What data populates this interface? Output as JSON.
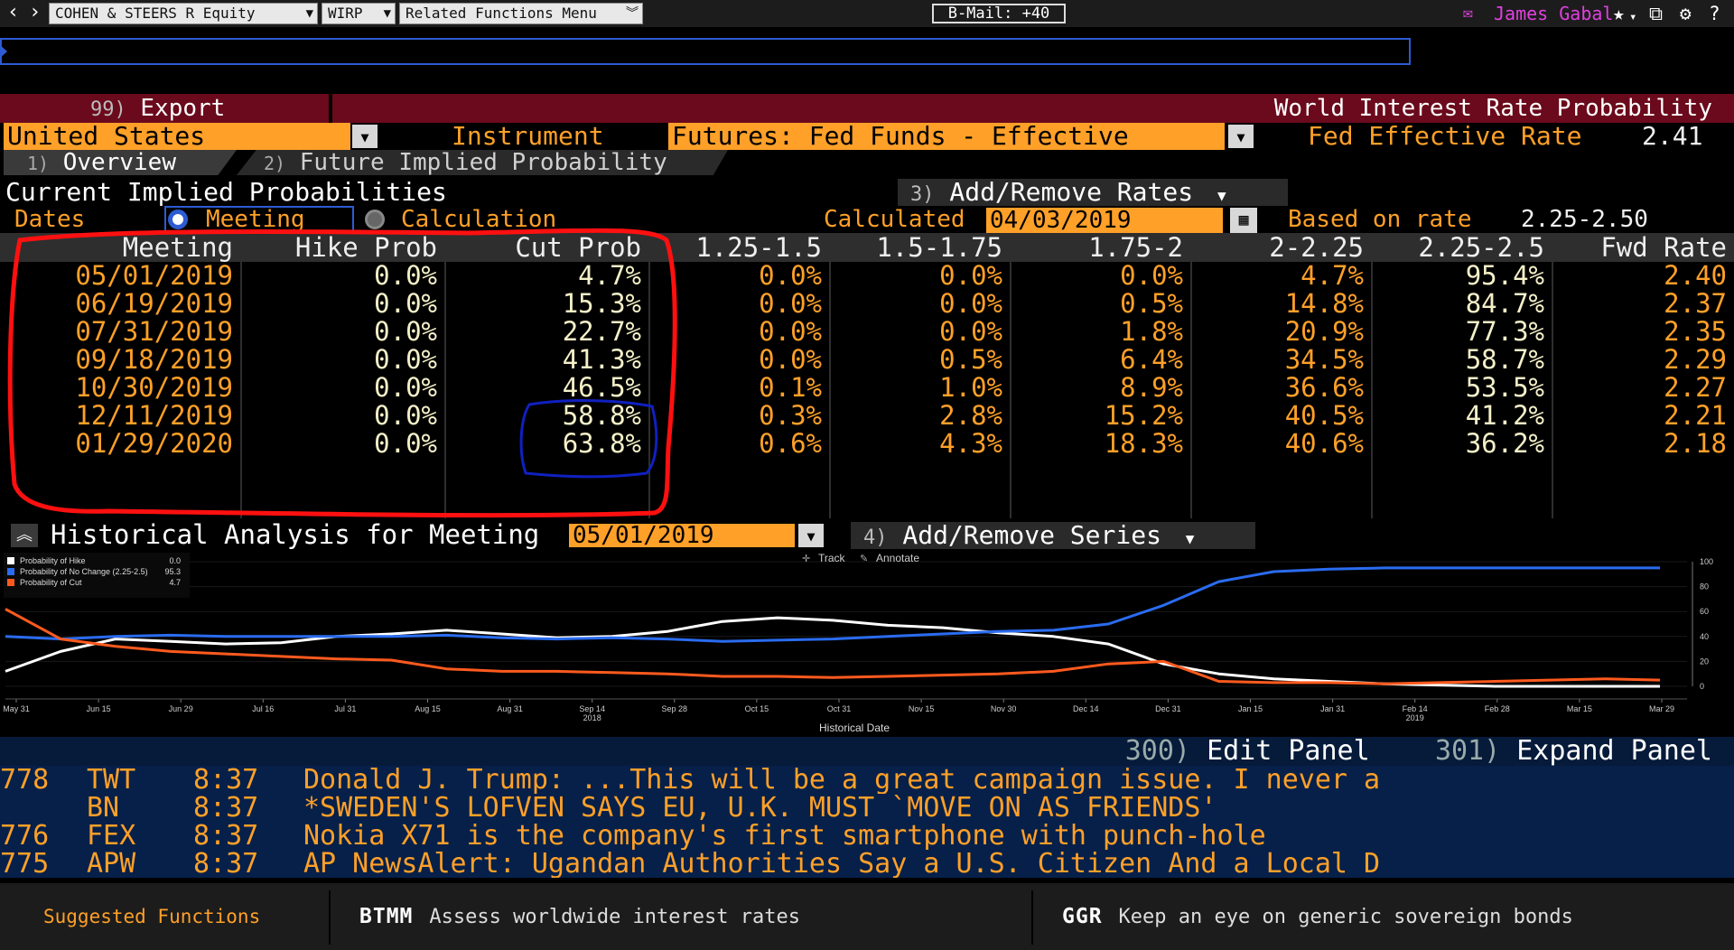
{
  "topbar": {
    "security": "COHEN & STEERS R Equity",
    "function": "WIRP",
    "related": "Related Functions  Menu",
    "bmail": "B-Mail: +40",
    "user": "James Gabal"
  },
  "header": {
    "export_num": "99)",
    "export_label": "Export",
    "title": "World Interest Rate Probability"
  },
  "filters": {
    "country": "United States",
    "instrument_label": "Instrument",
    "instrument": "Futures: Fed Funds - Effective",
    "fed_rate_label": "Fed Effective Rate",
    "fed_rate": "2.41"
  },
  "tabs": [
    {
      "num": "1)",
      "label": "Overview"
    },
    {
      "num": "2)",
      "label": "Future Implied Probability"
    }
  ],
  "section": {
    "title": "Current Implied Probabilities",
    "add_rates_num": "3)",
    "add_rates": "Add/Remove Rates",
    "dates_label": "Dates",
    "meeting": "Meeting",
    "calculation": "Calculation",
    "calculated_label": "Calculated",
    "calculated_date": "04/03/2019",
    "based_label": "Based on rate",
    "based_rate": "2.25-2.50"
  },
  "table": {
    "headers": [
      "Meeting",
      "Hike Prob",
      "Cut Prob",
      "1.25-1.5",
      "1.5-1.75",
      "1.75-2",
      "2-2.25",
      "2.25-2.5",
      "Fwd Rate"
    ],
    "rows": [
      [
        "05/01/2019",
        "0.0%",
        "4.7%",
        "0.0%",
        "0.0%",
        "0.0%",
        "4.7%",
        "95.4%",
        "2.40"
      ],
      [
        "06/19/2019",
        "0.0%",
        "15.3%",
        "0.0%",
        "0.0%",
        "0.5%",
        "14.8%",
        "84.7%",
        "2.37"
      ],
      [
        "07/31/2019",
        "0.0%",
        "22.7%",
        "0.0%",
        "0.0%",
        "1.8%",
        "20.9%",
        "77.3%",
        "2.35"
      ],
      [
        "09/18/2019",
        "0.0%",
        "41.3%",
        "0.0%",
        "0.5%",
        "6.4%",
        "34.5%",
        "58.7%",
        "2.29"
      ],
      [
        "10/30/2019",
        "0.0%",
        "46.5%",
        "0.1%",
        "1.0%",
        "8.9%",
        "36.6%",
        "53.5%",
        "2.27"
      ],
      [
        "12/11/2019",
        "0.0%",
        "58.8%",
        "0.3%",
        "2.8%",
        "15.2%",
        "40.5%",
        "41.2%",
        "2.21"
      ],
      [
        "01/29/2020",
        "0.0%",
        "63.8%",
        "0.6%",
        "4.3%",
        "18.3%",
        "40.6%",
        "36.2%",
        "2.18"
      ]
    ]
  },
  "historical": {
    "label": "Historical Analysis for Meeting",
    "meeting": "05/01/2019",
    "add_series_num": "4)",
    "add_series": "Add/Remove Series",
    "track": "Track",
    "annotate": "Annotate",
    "xlabel": "Historical Date",
    "legend": [
      {
        "name": "Probability of Hike",
        "value": "0.0",
        "color": "#ffffff"
      },
      {
        "name": "Probability of No Change (2.25-2.5)",
        "value": "95.3",
        "color": "#2a6cf0"
      },
      {
        "name": "Probability of Cut",
        "value": "4.7",
        "color": "#ff5a1e"
      }
    ]
  },
  "chart_data": {
    "type": "line",
    "xlabel": "Historical Date",
    "ylim": [
      0,
      100
    ],
    "yticks": [
      "100",
      "80",
      "60",
      "40",
      "20",
      "0"
    ],
    "xticks": [
      "May 31",
      "Jun 15",
      "Jun 29",
      "Jul 16",
      "Jul 31",
      "Aug 15",
      "Aug 31",
      "Sep 14",
      "Sep 28",
      "Oct 15",
      "Oct 31",
      "Nov 15",
      "Nov 30",
      "Dec 14",
      "Dec 31",
      "Jan 15",
      "Jan 31",
      "Feb 14",
      "Feb 28",
      "Mar 15",
      "Mar 29"
    ],
    "year_labels": [
      {
        "after": "Sep 14",
        "text": "2018"
      },
      {
        "after": "Feb 14",
        "text": "2019"
      }
    ],
    "series": [
      {
        "name": "Probability of Hike",
        "color": "#ffffff",
        "values": [
          12,
          28,
          38,
          36,
          34,
          35,
          40,
          42,
          45,
          42,
          39,
          40,
          44,
          52,
          55,
          53,
          49,
          47,
          43,
          40,
          34,
          18,
          10,
          6,
          4,
          2,
          1,
          0,
          0,
          0,
          0
        ]
      },
      {
        "name": "Probability of No Change (2.25-2.5)",
        "color": "#2a6cf0",
        "values": [
          40,
          38,
          40,
          41,
          40,
          40,
          40,
          40,
          41,
          39,
          38,
          39,
          38,
          36,
          37,
          38,
          40,
          42,
          44,
          45,
          50,
          65,
          84,
          92,
          94,
          95,
          95,
          95,
          95,
          95,
          95
        ]
      },
      {
        "name": "Probability of Cut",
        "color": "#ff5a1e",
        "values": [
          62,
          38,
          32,
          28,
          26,
          24,
          22,
          21,
          14,
          12,
          12,
          11,
          10,
          8,
          8,
          7,
          8,
          9,
          10,
          12,
          18,
          20,
          4,
          3,
          3,
          2,
          3,
          4,
          5,
          6,
          5
        ]
      }
    ]
  },
  "panel": {
    "edit_num": "300)",
    "edit": "Edit Panel",
    "expand_num": "301)",
    "expand": "Expand Panel"
  },
  "news": [
    {
      "num": "778",
      "src": "TWT",
      "time": "8:37",
      "headline": "Donald J. Trump: ...This will be a great campaign issue. I never a"
    },
    {
      "num": "",
      "src": "BN",
      "time": "8:37",
      "headline": "*SWEDEN'S LOFVEN SAYS EU, U.K. MUST `MOVE ON AS FRIENDS'"
    },
    {
      "num": "776",
      "src": "FEX",
      "time": "8:37",
      "headline": "Nokia X71 is the company's first smartphone with punch-hole"
    },
    {
      "num": "775",
      "src": "APW",
      "time": "8:37",
      "headline": "AP NewsAlert: Ugandan Authorities Say a U.S. Citizen And a Local D"
    }
  ],
  "footer": {
    "suggested": "Suggested Functions",
    "items": [
      {
        "code": "BTMM",
        "desc": "Assess worldwide interest rates"
      },
      {
        "code": "GGR",
        "desc": "Keep an eye on generic sovereign bonds"
      }
    ]
  },
  "colors": {
    "amber": "#ffa028",
    "header_red": "#6b0a1c",
    "annotation_red": "#ff1010",
    "annotation_blue": "#1020c0"
  }
}
